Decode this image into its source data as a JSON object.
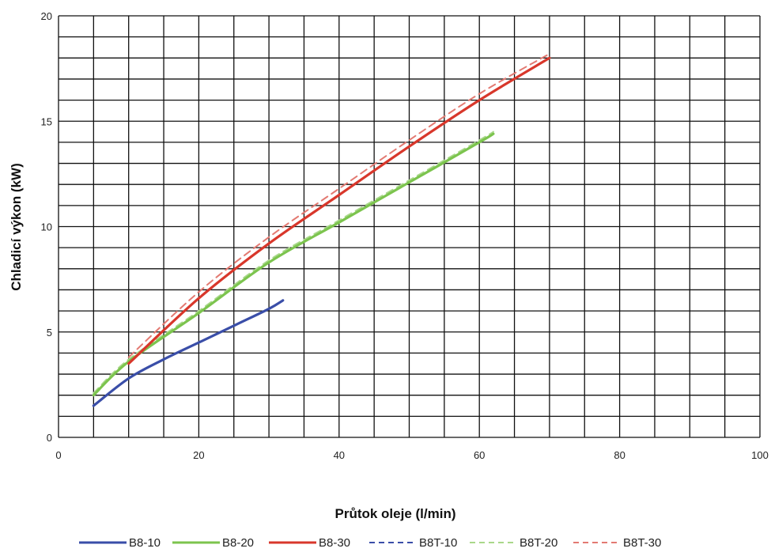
{
  "chart_data": {
    "type": "line",
    "title": "",
    "xlabel": "Průtok oleje (l/min)",
    "ylabel": "Chladicí výkon (kW)",
    "xlim": [
      0,
      100
    ],
    "ylim": [
      0,
      20
    ],
    "x_ticks": [
      0,
      20,
      40,
      60,
      80,
      100
    ],
    "y_ticks": [
      0,
      5,
      10,
      15,
      20
    ],
    "grid": true,
    "legend_position": "bottom",
    "series": [
      {
        "name": "B8-10",
        "color": "#3a4ea8",
        "dash": "solid",
        "x": [
          5,
          10,
          15,
          20,
          25,
          30,
          32
        ],
        "y": [
          1.5,
          2.8,
          3.7,
          4.5,
          5.3,
          6.1,
          6.5
        ]
      },
      {
        "name": "B8-20",
        "color": "#7cc44e",
        "dash": "solid",
        "x": [
          5,
          10,
          20,
          30,
          40,
          50,
          60,
          62
        ],
        "y": [
          2.0,
          3.6,
          5.9,
          8.3,
          10.2,
          12.1,
          14.0,
          14.4
        ]
      },
      {
        "name": "B8-30",
        "color": "#d8372b",
        "dash": "solid",
        "x": [
          10,
          20,
          30,
          40,
          50,
          60,
          70
        ],
        "y": [
          3.5,
          6.6,
          9.2,
          11.5,
          13.8,
          16.0,
          18.0
        ]
      },
      {
        "name": "B8T-10",
        "color": "#3a4ea8",
        "dash": "dashed",
        "x": [],
        "y": []
      },
      {
        "name": "B8T-20",
        "color": "#a9d88a",
        "dash": "dashed",
        "x": [
          5,
          10,
          20,
          30,
          40,
          50,
          60,
          62
        ],
        "y": [
          2.1,
          3.7,
          6.0,
          8.4,
          10.3,
          12.2,
          14.1,
          14.5
        ]
      },
      {
        "name": "B8T-30",
        "color": "#e37a72",
        "dash": "dashed",
        "x": [
          10,
          20,
          30,
          40,
          50,
          60,
          70
        ],
        "y": [
          3.8,
          6.9,
          9.5,
          11.8,
          14.1,
          16.3,
          18.2
        ]
      }
    ]
  }
}
